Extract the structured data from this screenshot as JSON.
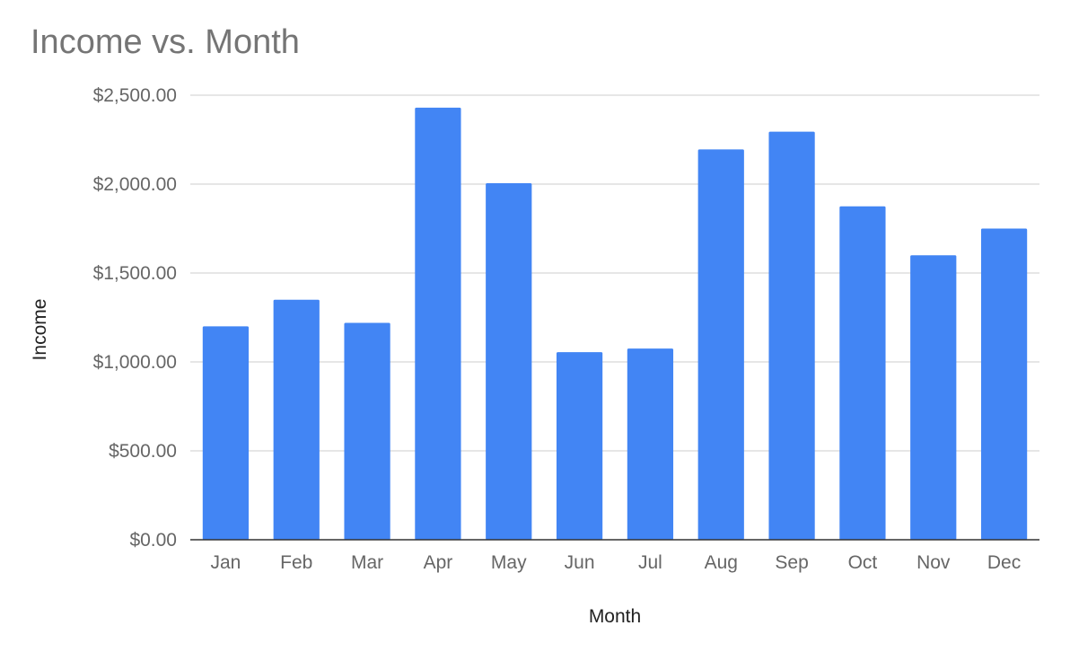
{
  "chart_data": {
    "type": "bar",
    "title": "Income vs. Month",
    "xlabel": "Month",
    "ylabel": "Income",
    "categories": [
      "Jan",
      "Feb",
      "Mar",
      "Apr",
      "May",
      "Jun",
      "Jul",
      "Aug",
      "Sep",
      "Oct",
      "Nov",
      "Dec"
    ],
    "series": [
      {
        "values": [
          1200,
          1350,
          1220,
          2430,
          2005,
          1055,
          1075,
          2195,
          2295,
          1875,
          1600,
          1750
        ]
      }
    ],
    "ylim": [
      0,
      2500
    ],
    "yticks": [
      0,
      500,
      1000,
      1500,
      2000,
      2500
    ],
    "ytick_labels": [
      "$0.00",
      "$500.00",
      "$1,000.00",
      "$1,500.00",
      "$2,000.00",
      "$2,500.00"
    ],
    "grid": true,
    "legend": "none",
    "bar_color": "#4285f4"
  }
}
